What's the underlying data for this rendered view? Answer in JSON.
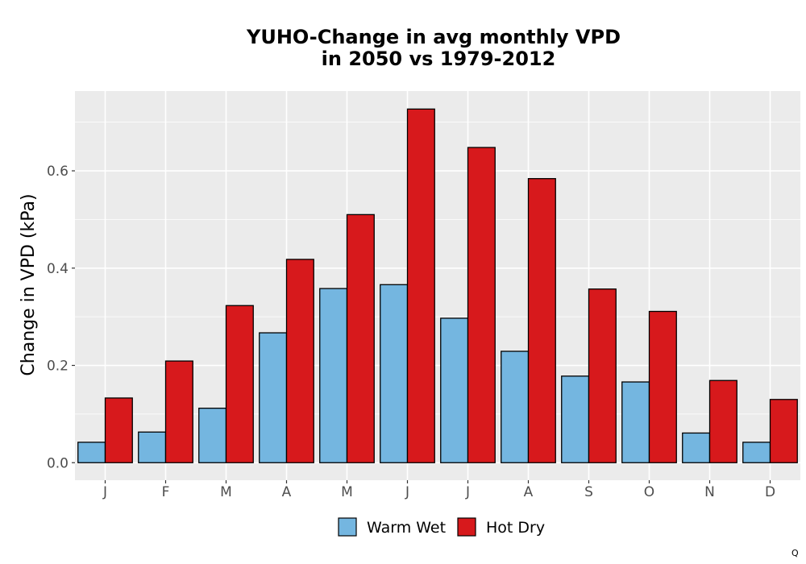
{
  "chart_data": {
    "type": "bar",
    "title": "YUHO-Change in avg monthly VPD\nin 2050 vs 1979-2012",
    "xlabel": "",
    "ylabel": "Change in VPD (kPa)",
    "categories": [
      "J",
      "F",
      "M",
      "A",
      "M",
      "J",
      "J",
      "A",
      "S",
      "O",
      "N",
      "D"
    ],
    "series": [
      {
        "name": "Warm Wet",
        "color": "#74b6e0",
        "values": [
          0.042,
          0.063,
          0.112,
          0.267,
          0.358,
          0.366,
          0.297,
          0.229,
          0.178,
          0.166,
          0.061,
          0.042
        ]
      },
      {
        "name": "Hot Dry",
        "color": "#d7191c",
        "values": [
          0.133,
          0.209,
          0.323,
          0.418,
          0.51,
          0.727,
          0.648,
          0.584,
          0.357,
          0.311,
          0.169,
          0.13
        ]
      }
    ],
    "ylim": [
      -0.036,
      0.764
    ],
    "yticks": [
      "0.0",
      "0.2",
      "0.4",
      "0.6"
    ],
    "grid": true,
    "legend_position": "bottom",
    "panel_background": "#ebebeb",
    "corner_mark": "Q"
  }
}
